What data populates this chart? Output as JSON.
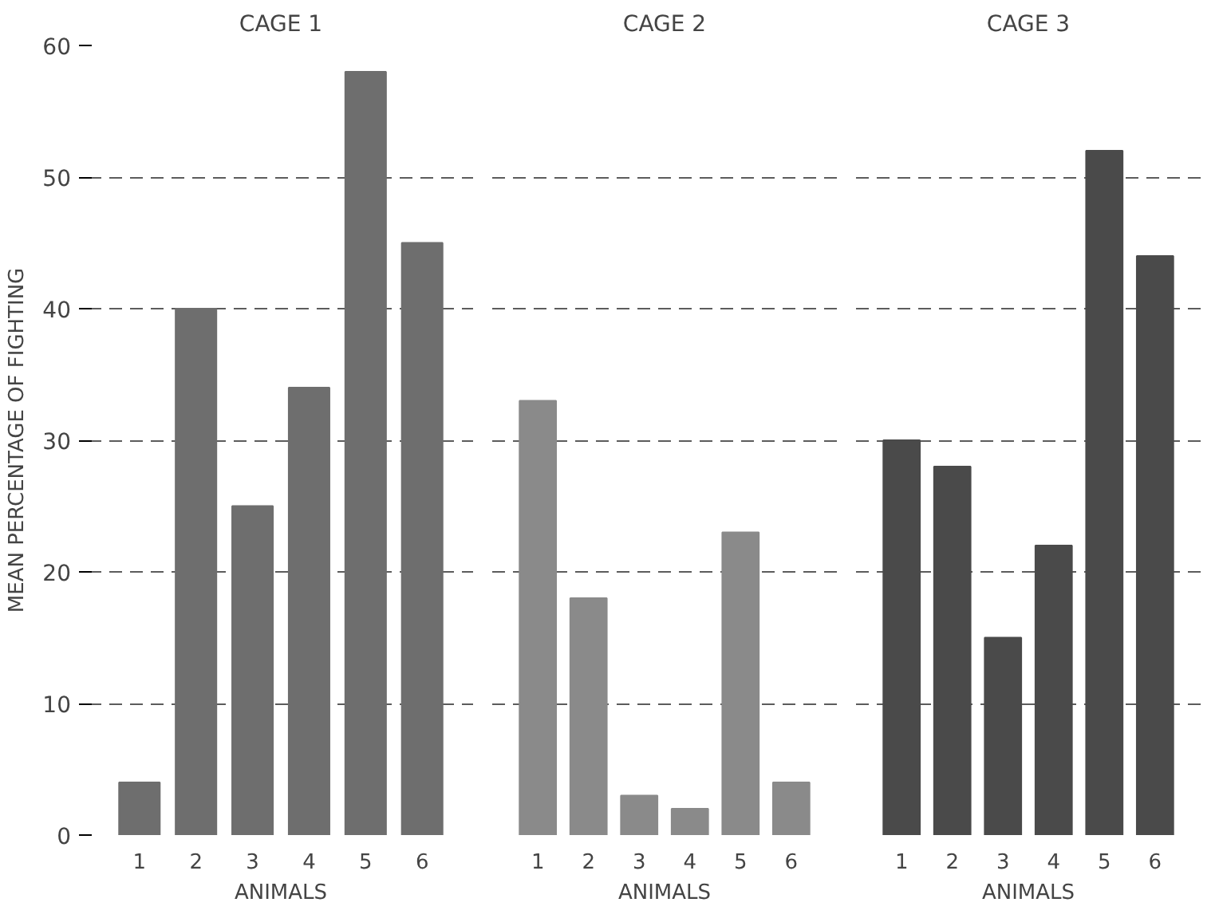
{
  "chart_data": [
    {
      "type": "bar",
      "title": "CAGE 1",
      "xlabel": "ANIMALS",
      "ylabel": "MEAN PERCENTAGE OF FIGHTING",
      "categories": [
        "1",
        "2",
        "3",
        "4",
        "5",
        "6"
      ],
      "values": [
        4,
        40,
        25,
        34,
        58,
        45
      ],
      "color": "#6e6e6e",
      "ylim": [
        0,
        60
      ],
      "yticks": [
        0,
        10,
        20,
        30,
        40,
        50,
        60
      ],
      "grid": "y"
    },
    {
      "type": "bar",
      "title": "CAGE 2",
      "xlabel": "ANIMALS",
      "categories": [
        "1",
        "2",
        "3",
        "4",
        "5",
        "6"
      ],
      "values": [
        33,
        18,
        3,
        2,
        23,
        4
      ],
      "color": "#8a8a8a",
      "ylim": [
        0,
        60
      ],
      "yticks": [
        0,
        10,
        20,
        30,
        40,
        50,
        60
      ],
      "grid": "y",
      "tick_labels": "x"
    },
    {
      "type": "bar",
      "title": "CAGE 3",
      "xlabel": "ANIMALS",
      "categories": [
        "1",
        "2",
        "3",
        "4",
        "5",
        "6"
      ],
      "values": [
        30,
        28,
        15,
        22,
        52,
        44
      ],
      "color": "#4a4a4a",
      "ylim": [
        0,
        60
      ],
      "yticks": [
        0,
        10,
        20,
        30,
        40,
        50,
        60
      ],
      "grid": "y",
      "tick_labels": "x"
    }
  ]
}
